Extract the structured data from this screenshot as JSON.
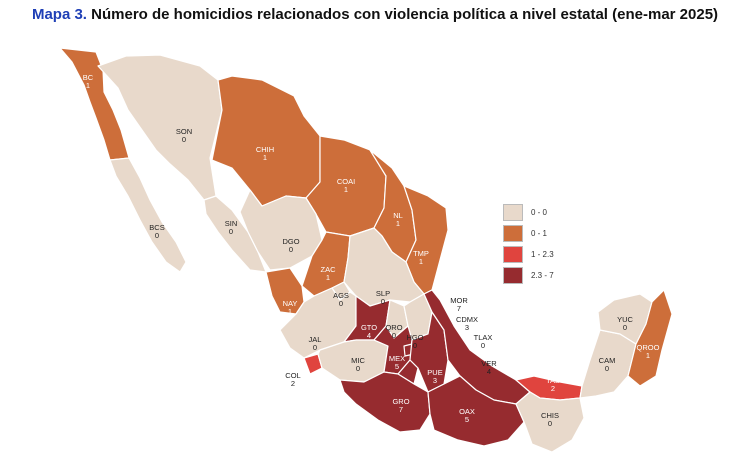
{
  "title": {
    "prefix": "Mapa 3.",
    "text": "Número de homicidios relacionados con violencia política a nivel estatal (ene-mar 2025)"
  },
  "legend": [
    {
      "label": "0 - 0",
      "color": "#e8d9cb"
    },
    {
      "label": "0 - 1",
      "color": "#cd6e3a"
    },
    {
      "label": "1 - 2.3",
      "color": "#e0443e"
    },
    {
      "label": "2.3 - 7",
      "color": "#962b2f"
    }
  ],
  "states": [
    {
      "abbr": "BC",
      "value": "1",
      "class": 1
    },
    {
      "abbr": "BCS",
      "value": "0",
      "class": 0
    },
    {
      "abbr": "SON",
      "value": "0",
      "class": 0
    },
    {
      "abbr": "CHIH",
      "value": "1",
      "class": 1
    },
    {
      "abbr": "COAI",
      "value": "1",
      "class": 1
    },
    {
      "abbr": "NL",
      "value": "1",
      "class": 1
    },
    {
      "abbr": "TMP",
      "value": "1",
      "class": 1
    },
    {
      "abbr": "SIN",
      "value": "0",
      "class": 0
    },
    {
      "abbr": "DGO",
      "value": "0",
      "class": 0
    },
    {
      "abbr": "ZAC",
      "value": "1",
      "class": 1
    },
    {
      "abbr": "NAY",
      "value": "1",
      "class": 1
    },
    {
      "abbr": "AGS",
      "value": "0",
      "class": 0
    },
    {
      "abbr": "SLP",
      "value": "0",
      "class": 0
    },
    {
      "abbr": "JAL",
      "value": "0",
      "class": 0
    },
    {
      "abbr": "GTO",
      "value": "4",
      "class": 3
    },
    {
      "abbr": "QRO",
      "value": "0",
      "class": 0
    },
    {
      "abbr": "HGO",
      "value": "0",
      "class": 0
    },
    {
      "abbr": "COL",
      "value": "2",
      "class": 2
    },
    {
      "abbr": "MIC",
      "value": "0",
      "class": 0
    },
    {
      "abbr": "MEX",
      "value": "5",
      "class": 3
    },
    {
      "abbr": "CDMX",
      "value": "3",
      "class": 3
    },
    {
      "abbr": "MOR",
      "value": "7",
      "class": 3
    },
    {
      "abbr": "TLAX",
      "value": "0",
      "class": 0
    },
    {
      "abbr": "PUE",
      "value": "3",
      "class": 3
    },
    {
      "abbr": "VER",
      "value": "4",
      "class": 3
    },
    {
      "abbr": "GRO",
      "value": "7",
      "class": 3
    },
    {
      "abbr": "OAX",
      "value": "5",
      "class": 3
    },
    {
      "abbr": "TAB",
      "value": "2",
      "class": 2
    },
    {
      "abbr": "CHIS",
      "value": "0",
      "class": 0
    },
    {
      "abbr": "CAM",
      "value": "0",
      "class": 0
    },
    {
      "abbr": "YUC",
      "value": "0",
      "class": 0
    },
    {
      "abbr": "QROO",
      "value": "1",
      "class": 1
    }
  ]
}
